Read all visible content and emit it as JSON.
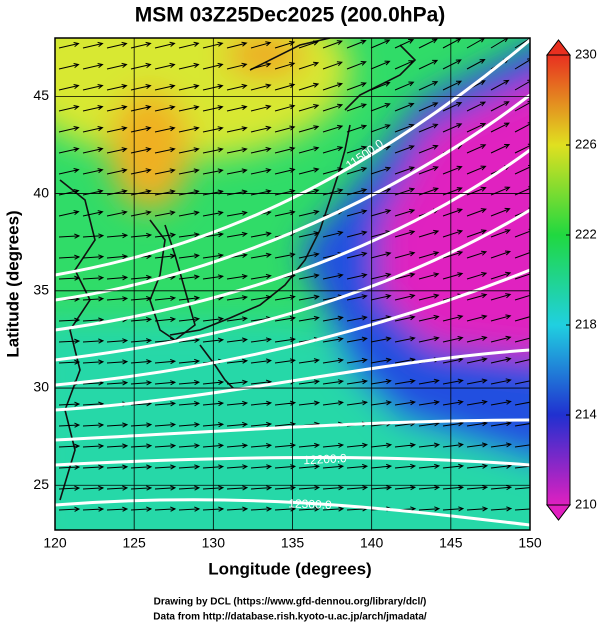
{
  "title": "MSM 03Z25Dec2025 (200.0hPa)",
  "x_axis": {
    "label": "Longitude (degrees)",
    "lim": [
      120,
      150
    ],
    "ticks": [
      120,
      125,
      130,
      135,
      140,
      145,
      150
    ]
  },
  "y_axis": {
    "label": "Latitude  (degrees)",
    "lim": [
      22.7,
      48
    ],
    "ticks": [
      25,
      30,
      35,
      40,
      45
    ]
  },
  "colorbar": {
    "lim": [
      210,
      230
    ],
    "ticks": [
      210,
      214,
      218,
      222,
      226,
      230
    ]
  },
  "contour_labels": [
    "11500.0",
    "12200.0",
    "12300.0"
  ],
  "credits": [
    "Drawing by DCL (https://www.gfd-dennou.org/library/dcl/)",
    "Data from http://database.rish.kyoto-u.ac.jp/arch/jmadata/"
  ]
}
